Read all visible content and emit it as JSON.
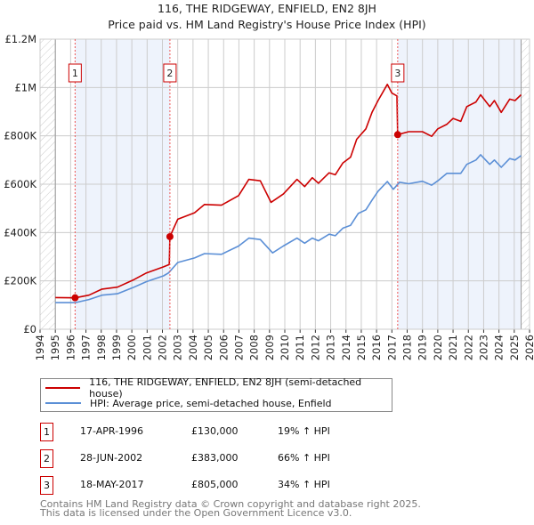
{
  "chart_data": {
    "type": "line",
    "title": "116, THE RIDGEWAY, ENFIELD, EN2 8JH",
    "subtitle": "Price paid vs. HM Land Registry's House Price Index (HPI)",
    "xlim": [
      1994,
      2026
    ],
    "ylim": [
      0,
      1200000
    ],
    "x_ticks": [
      "1994",
      "1995",
      "1996",
      "1997",
      "1998",
      "1999",
      "2000",
      "2001",
      "2002",
      "2003",
      "2004",
      "2005",
      "2006",
      "2007",
      "2008",
      "2009",
      "2010",
      "2011",
      "2012",
      "2013",
      "2014",
      "2015",
      "2016",
      "2017",
      "2018",
      "2019",
      "2020",
      "2021",
      "2022",
      "2023",
      "2024",
      "2025",
      "2026"
    ],
    "y_ticks": [
      {
        "value": 0,
        "label": "£0"
      },
      {
        "value": 200000,
        "label": "£200K"
      },
      {
        "value": 400000,
        "label": "£400K"
      },
      {
        "value": 600000,
        "label": "£600K"
      },
      {
        "value": 800000,
        "label": "£800K"
      },
      {
        "value": 1000000,
        "label": "£1M"
      },
      {
        "value": 1200000,
        "label": "£1.2M"
      }
    ],
    "grid": true,
    "data_range": [
      1995,
      2025.45
    ],
    "series": [
      {
        "name": "116, THE RIDGEWAY, ENFIELD, EN2 8JH (semi-detached house)",
        "color": "#cc0000",
        "x": [
          1995,
          1996.3,
          1997.2,
          1998.05,
          1999.06,
          2000.06,
          2000.96,
          2002.07,
          2002.45,
          2002.49,
          2003.0,
          2004.1,
          2004.75,
          2005.86,
          2006.98,
          2007.65,
          2008.4,
          2009.1,
          2009.9,
          2010.8,
          2011.3,
          2011.8,
          2012.2,
          2012.9,
          2013.3,
          2013.8,
          2014.3,
          2014.7,
          2015.3,
          2015.7,
          2016.1,
          2016.7,
          2017.0,
          2017.33,
          2017.38,
          2018.1,
          2019.0,
          2019.6,
          2020.0,
          2020.6,
          2021.0,
          2021.5,
          2021.9,
          2022.5,
          2022.8,
          2023.4,
          2023.7,
          2024.15,
          2024.7,
          2025.05,
          2025.45
        ],
        "values": [
          131000,
          130000,
          141000,
          166000,
          174000,
          203000,
          233000,
          258000,
          268000,
          383000,
          455000,
          482000,
          516000,
          513000,
          553000,
          620000,
          614000,
          525000,
          559000,
          620000,
          590000,
          627000,
          604000,
          647000,
          639000,
          688000,
          712000,
          786000,
          829000,
          897000,
          946000,
          1013000,
          977000,
          965000,
          805000,
          817000,
          817000,
          798000,
          829000,
          848000,
          872000,
          860000,
          921000,
          940000,
          970000,
          921000,
          946000,
          897000,
          952000,
          946000,
          970000
        ]
      },
      {
        "name": "HPI: Average price, semi-detached house, Enfield",
        "color": "#5b8fd6",
        "x": [
          1995,
          1996.3,
          1997.2,
          1998.05,
          1999.06,
          2000.06,
          2000.96,
          2002.07,
          2002.4,
          2003.0,
          2004.1,
          2004.75,
          2005.86,
          2006.98,
          2007.65,
          2008.4,
          2009.2,
          2009.9,
          2010.8,
          2011.3,
          2011.8,
          2012.2,
          2012.9,
          2013.3,
          2013.8,
          2014.3,
          2014.8,
          2015.3,
          2015.7,
          2016.1,
          2016.7,
          2017.1,
          2017.5,
          2018.1,
          2019.0,
          2019.6,
          2020.0,
          2020.6,
          2021.5,
          2021.9,
          2022.5,
          2022.8,
          2023.4,
          2023.7,
          2024.15,
          2024.7,
          2025.05,
          2025.45
        ],
        "values": [
          110000,
          110000,
          123000,
          141000,
          147000,
          172000,
          197000,
          221000,
          233000,
          276000,
          295000,
          313000,
          310000,
          344000,
          377000,
          371000,
          316000,
          344000,
          377000,
          356000,
          377000,
          366000,
          393000,
          387000,
          418000,
          430000,
          479000,
          494000,
          534000,
          571000,
          611000,
          579000,
          608000,
          602000,
          612000,
          596000,
          614000,
          645000,
          645000,
          682000,
          700000,
          722000,
          682000,
          700000,
          670000,
          706000,
          700000,
          718000
        ]
      }
    ],
    "sales": [
      {
        "num": "1",
        "date": "17-APR-1996",
        "x": 1996.29,
        "price": "£130,000",
        "value": 130000,
        "hpi": "19% ↑ HPI"
      },
      {
        "num": "2",
        "date": "28-JUN-2002",
        "x": 2002.49,
        "price": "£383,000",
        "value": 383000,
        "hpi": "66% ↑ HPI"
      },
      {
        "num": "3",
        "date": "18-MAY-2017",
        "x": 2017.38,
        "price": "£805,000",
        "value": 805000,
        "hpi": "34% ↑ HPI"
      }
    ],
    "legend_placement": "bottom"
  },
  "header": {
    "title": "116, THE RIDGEWAY, ENFIELD, EN2 8JH",
    "subtitle": "Price paid vs. HM Land Registry's House Price Index (HPI)"
  },
  "legend": {
    "property": "116, THE RIDGEWAY, ENFIELD, EN2 8JH (semi-detached house)",
    "hpi": "HPI: Average price, semi-detached house, Enfield"
  },
  "footer": {
    "line1": "Contains HM Land Registry data © Crown copyright and database right 2025.",
    "line2": "This data is licensed under the Open Government Licence v3.0."
  },
  "colors": {
    "property": "#cc0000",
    "hpi": "#5b8fd6",
    "shade": "#eef3fc",
    "grid": "#cccccc"
  }
}
